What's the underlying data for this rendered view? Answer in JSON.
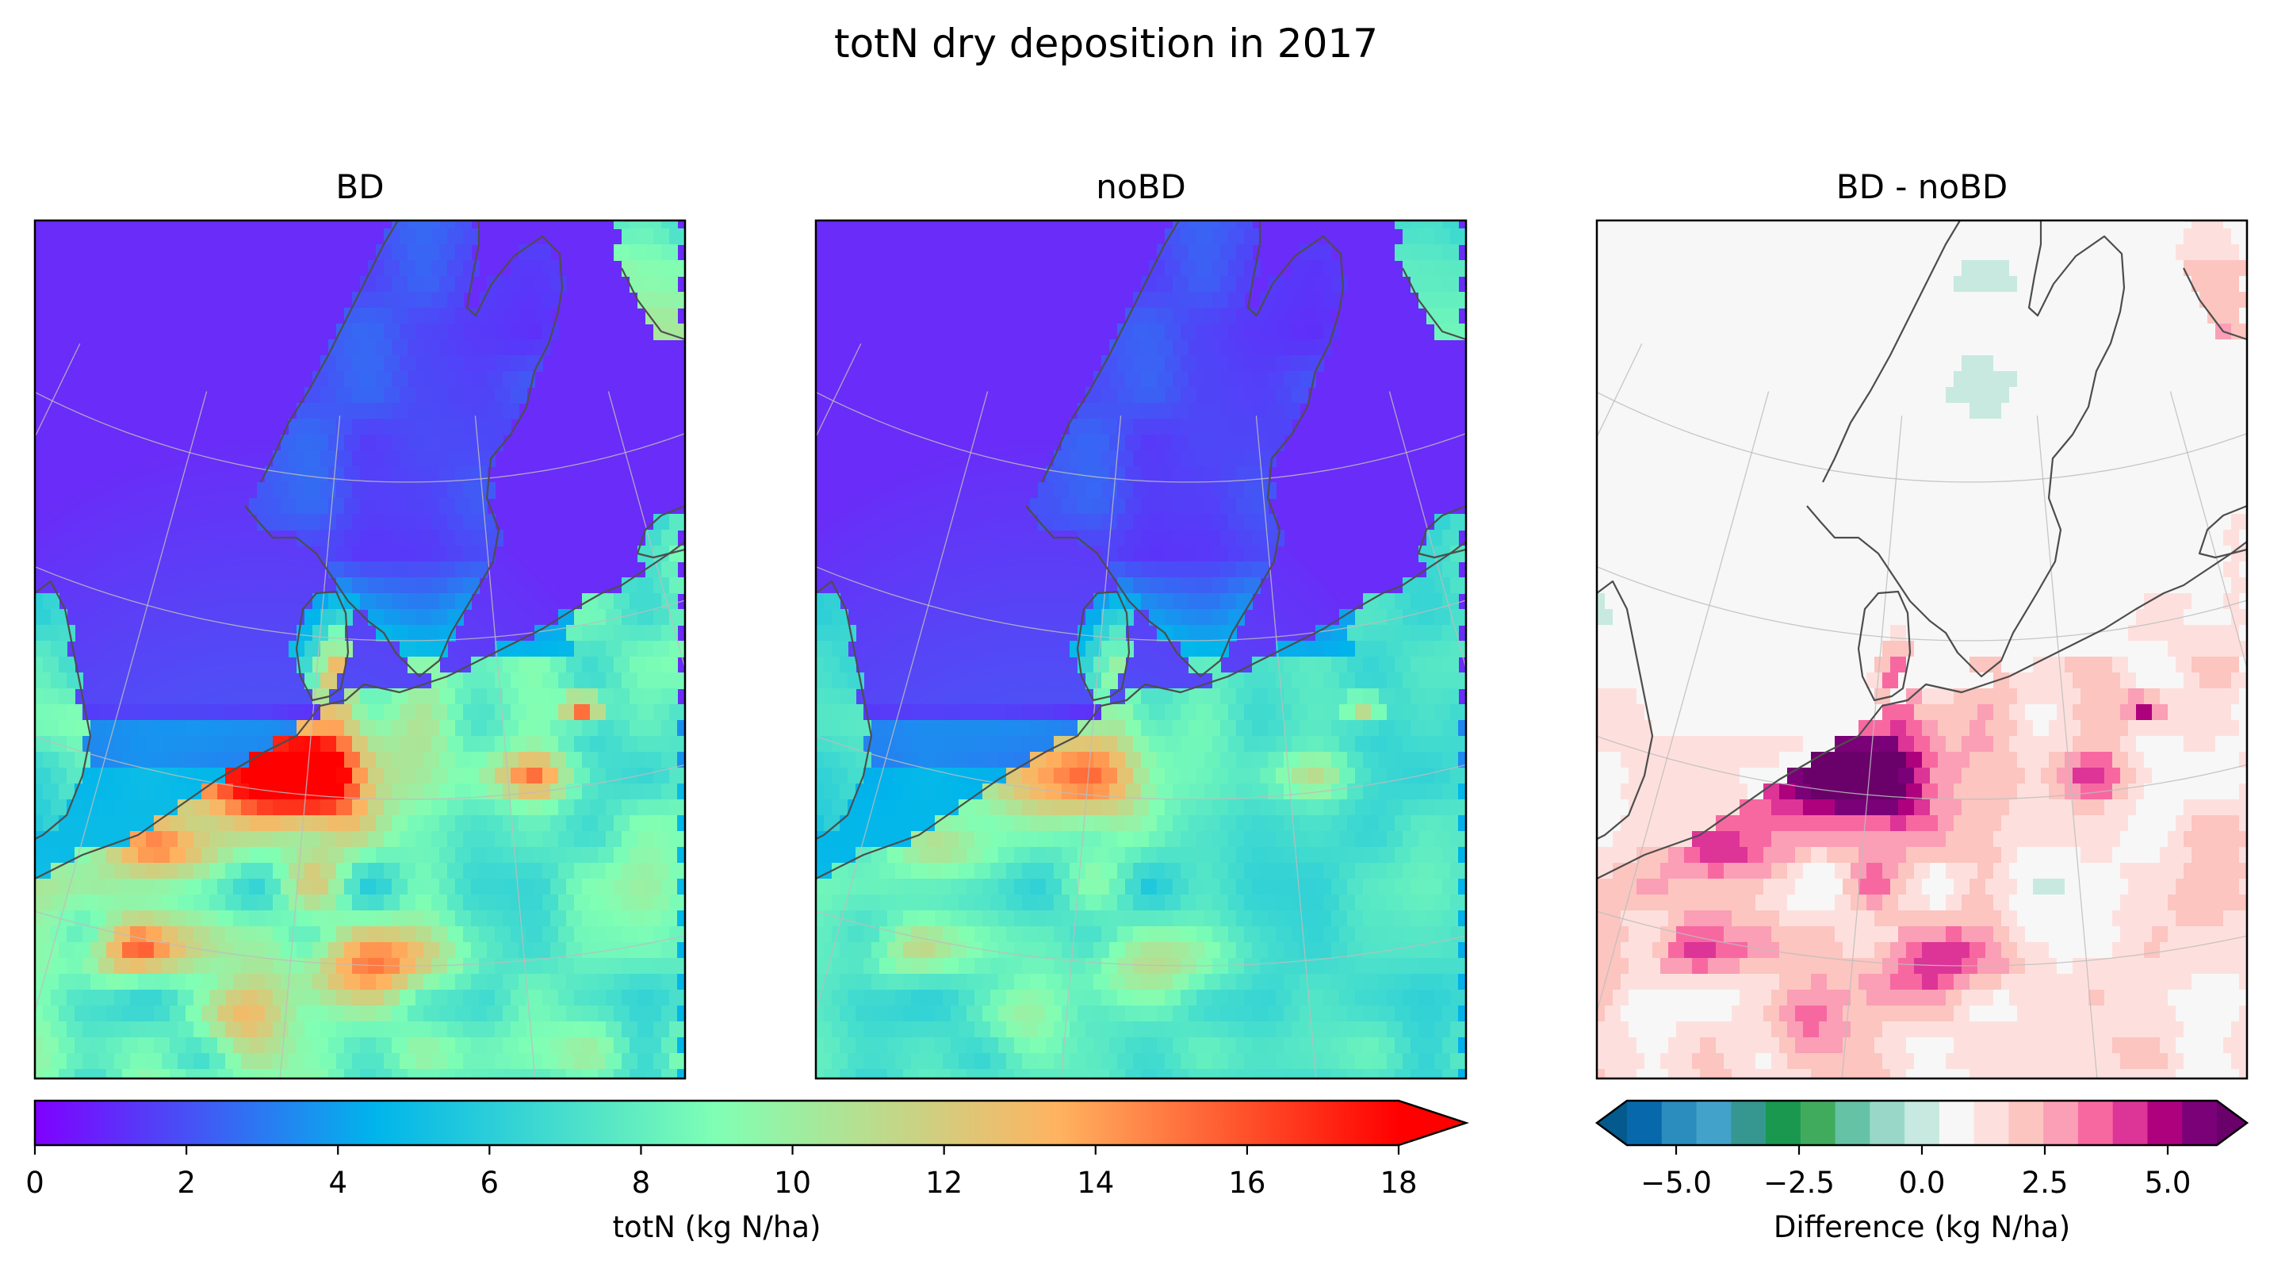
{
  "figure": {
    "suptitle": "totN dry deposition in 2017"
  },
  "chart_data": [
    {
      "type": "heatmap",
      "title": "BD",
      "colormap": "rainbow",
      "value_range": [
        0,
        18
      ],
      "units": "kg N/ha",
      "hotspot_level": "high (18+ kg N/ha over Netherlands, Belgium and northwestern Germany)"
    },
    {
      "type": "heatmap",
      "title": "noBD",
      "colormap": "rainbow",
      "value_range": [
        0,
        18
      ],
      "units": "kg N/ha",
      "hotspot_level": "moderate (about 14-18 kg N/ha over Netherlands and northwestern Germany)"
    },
    {
      "type": "heatmap",
      "title": "BD - noBD",
      "colormap": "diverging blue-green-white-pink-purple",
      "value_range": [
        -6,
        6
      ],
      "units": "kg N/ha",
      "dominant_sign": "positive over land (BD higher than noBD)"
    }
  ],
  "colorbars": {
    "totN": {
      "label": "totN (kg N/ha)",
      "min": 0,
      "max": 18,
      "extend": "max",
      "ticks": [
        "0",
        "2",
        "4",
        "6",
        "8",
        "10",
        "12",
        "14",
        "16",
        "18"
      ],
      "tick_values": [
        0,
        2,
        4,
        6,
        8,
        10,
        12,
        14,
        16,
        18
      ],
      "colors": [
        "#8000ff",
        "#00b5eb",
        "#80ffb4",
        "#ffb360",
        "#ff0000"
      ]
    },
    "difference": {
      "label": "Difference (kg N/ha)",
      "min": -6,
      "max": 6,
      "extend": "both",
      "ticks": [
        "−5.0",
        "−2.5",
        "0.0",
        "2.5",
        "5.0"
      ],
      "tick_values": [
        -5,
        -2.5,
        0,
        2.5,
        5
      ],
      "colors": [
        "#0868ac",
        "#2b8cbe",
        "#43a2ca",
        "#35978f",
        "#1a9850",
        "#41ab5d",
        "#66c2a4",
        "#99d8c9",
        "#c7e9e0",
        "#f7f7f7",
        "#fde0dd",
        "#fcc5c0",
        "#fa9fb5",
        "#f768a1",
        "#dd3497",
        "#ae017e",
        "#7a0177"
      ],
      "under_color": "#045a8d",
      "over_color": "#6a006a"
    }
  }
}
